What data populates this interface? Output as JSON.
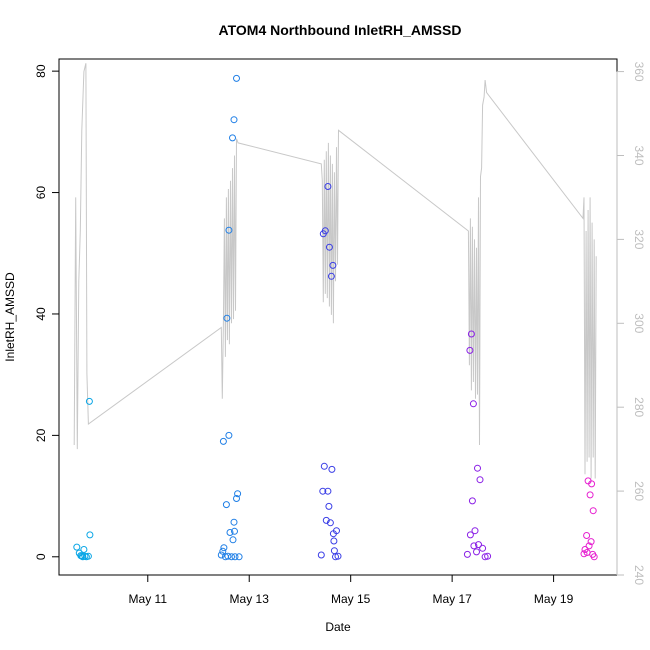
{
  "chart_data": {
    "type": "scatter",
    "title": "ATOM4 Northbound InletRH_AMSSD",
    "xlabel": "Date",
    "ylabel": "InletRH_AMSSD",
    "x_ticks": [
      {
        "label": "May 11",
        "day": 11.0
      },
      {
        "label": "May 13",
        "day": 13.0
      },
      {
        "label": "May 15",
        "day": 15.0
      },
      {
        "label": "May 17",
        "day": 17.0
      },
      {
        "label": "May 19",
        "day": 19.0
      }
    ],
    "xlim_day": [
      9.25,
      20.25
    ],
    "ylim": [
      -3,
      82
    ],
    "y_ticks": [
      0,
      20,
      40,
      60,
      80
    ],
    "secondary_axis": {
      "color": "#bebebe",
      "ylim": [
        240,
        363
      ],
      "ticks": [
        240,
        260,
        280,
        300,
        320,
        340,
        360
      ]
    },
    "points": [
      {
        "day": 9.6,
        "y": 1.6,
        "color": "#0aa6e6"
      },
      {
        "day": 9.65,
        "y": 0.6,
        "color": "#0aa6e6"
      },
      {
        "day": 9.68,
        "y": 0.2,
        "color": "#0aa6e6"
      },
      {
        "day": 9.7,
        "y": 0.1,
        "color": "#0aa6e6"
      },
      {
        "day": 9.72,
        "y": 0.0,
        "color": "#0aa6e6"
      },
      {
        "day": 9.74,
        "y": 1.2,
        "color": "#0aa6e6"
      },
      {
        "day": 9.76,
        "y": 0.1,
        "color": "#0aa6e6"
      },
      {
        "day": 9.79,
        "y": 0.0,
        "color": "#0aa6e6"
      },
      {
        "day": 9.83,
        "y": 0.1,
        "color": "#0aa6e6"
      },
      {
        "day": 9.85,
        "y": 25.6,
        "color": "#0aa6e6"
      },
      {
        "day": 9.86,
        "y": 3.6,
        "color": "#0aa6e6"
      },
      {
        "day": 12.45,
        "y": 0.3,
        "color": "#1f7fe6"
      },
      {
        "day": 12.48,
        "y": 0.9,
        "color": "#1f7fe6"
      },
      {
        "day": 12.49,
        "y": 19.0,
        "color": "#1f7fe6"
      },
      {
        "day": 12.5,
        "y": 1.5,
        "color": "#1f7fe6"
      },
      {
        "day": 12.53,
        "y": 0.0,
        "color": "#1f7fe6"
      },
      {
        "day": 12.55,
        "y": 8.6,
        "color": "#1f7fe6"
      },
      {
        "day": 12.56,
        "y": 39.3,
        "color": "#1f7fe6"
      },
      {
        "day": 12.58,
        "y": 0.1,
        "color": "#1f7fe6"
      },
      {
        "day": 12.6,
        "y": 53.8,
        "color": "#1f7fe6"
      },
      {
        "day": 12.6,
        "y": 20.0,
        "color": "#1f7fe6"
      },
      {
        "day": 12.62,
        "y": 4.0,
        "color": "#1f7fe6"
      },
      {
        "day": 12.65,
        "y": 0.0,
        "color": "#1f7fe6"
      },
      {
        "day": 12.67,
        "y": 69.0,
        "color": "#1f7fe6"
      },
      {
        "day": 12.7,
        "y": 72.0,
        "color": "#1f7fe6"
      },
      {
        "day": 12.7,
        "y": 5.7,
        "color": "#1f7fe6"
      },
      {
        "day": 12.72,
        "y": 0.0,
        "color": "#1f7fe6"
      },
      {
        "day": 12.75,
        "y": 78.8,
        "color": "#1f7fe6"
      },
      {
        "day": 12.75,
        "y": 9.6,
        "color": "#1f7fe6"
      },
      {
        "day": 12.77,
        "y": 10.4,
        "color": "#1f7fe6"
      },
      {
        "day": 12.8,
        "y": 0.0,
        "color": "#1f7fe6"
      },
      {
        "day": 12.68,
        "y": 2.8,
        "color": "#1f7fe6"
      },
      {
        "day": 12.71,
        "y": 4.2,
        "color": "#1f7fe6"
      },
      {
        "day": 14.42,
        "y": 0.3,
        "color": "#3a3ee6"
      },
      {
        "day": 14.45,
        "y": 10.8,
        "color": "#3a3ee6"
      },
      {
        "day": 14.46,
        "y": 53.2,
        "color": "#3a3ee6"
      },
      {
        "day": 14.48,
        "y": 14.9,
        "color": "#3a3ee6"
      },
      {
        "day": 14.5,
        "y": 53.7,
        "color": "#3a3ee6"
      },
      {
        "day": 14.52,
        "y": 6.0,
        "color": "#3a3ee6"
      },
      {
        "day": 14.55,
        "y": 61.0,
        "color": "#3a3ee6"
      },
      {
        "day": 14.55,
        "y": 10.8,
        "color": "#3a3ee6"
      },
      {
        "day": 14.57,
        "y": 8.3,
        "color": "#3a3ee6"
      },
      {
        "day": 14.58,
        "y": 51.0,
        "color": "#3a3ee6"
      },
      {
        "day": 14.6,
        "y": 5.6,
        "color": "#3a3ee6"
      },
      {
        "day": 14.62,
        "y": 46.2,
        "color": "#3a3ee6"
      },
      {
        "day": 14.63,
        "y": 14.4,
        "color": "#3a3ee6"
      },
      {
        "day": 14.65,
        "y": 48.0,
        "color": "#3a3ee6"
      },
      {
        "day": 14.67,
        "y": 2.6,
        "color": "#3a3ee6"
      },
      {
        "day": 14.7,
        "y": 0.0,
        "color": "#3a3ee6"
      },
      {
        "day": 14.72,
        "y": 4.3,
        "color": "#3a3ee6"
      },
      {
        "day": 14.75,
        "y": 0.1,
        "color": "#3a3ee6"
      },
      {
        "day": 14.66,
        "y": 3.8,
        "color": "#3a3ee6"
      },
      {
        "day": 14.68,
        "y": 1.0,
        "color": "#3a3ee6"
      },
      {
        "day": 17.3,
        "y": 0.4,
        "color": "#8a1fe6"
      },
      {
        "day": 17.35,
        "y": 34.0,
        "color": "#8a1fe6"
      },
      {
        "day": 17.38,
        "y": 36.7,
        "color": "#8a1fe6"
      },
      {
        "day": 17.4,
        "y": 9.2,
        "color": "#8a1fe6"
      },
      {
        "day": 17.42,
        "y": 25.2,
        "color": "#8a1fe6"
      },
      {
        "day": 17.45,
        "y": 4.3,
        "color": "#8a1fe6"
      },
      {
        "day": 17.5,
        "y": 14.6,
        "color": "#8a1fe6"
      },
      {
        "day": 17.55,
        "y": 12.7,
        "color": "#8a1fe6"
      },
      {
        "day": 17.6,
        "y": 1.4,
        "color": "#8a1fe6"
      },
      {
        "day": 17.65,
        "y": 0.0,
        "color": "#8a1fe6"
      },
      {
        "day": 17.7,
        "y": 0.1,
        "color": "#8a1fe6"
      },
      {
        "day": 17.36,
        "y": 3.6,
        "color": "#8a1fe6"
      },
      {
        "day": 17.43,
        "y": 1.8,
        "color": "#8a1fe6"
      },
      {
        "day": 17.48,
        "y": 0.8,
        "color": "#8a1fe6"
      },
      {
        "day": 17.52,
        "y": 2.0,
        "color": "#8a1fe6"
      },
      {
        "day": 19.6,
        "y": 0.5,
        "color": "#e61fd0"
      },
      {
        "day": 19.65,
        "y": 3.5,
        "color": "#e61fd0"
      },
      {
        "day": 19.68,
        "y": 12.5,
        "color": "#e61fd0"
      },
      {
        "day": 19.72,
        "y": 10.2,
        "color": "#e61fd0"
      },
      {
        "day": 19.75,
        "y": 12.0,
        "color": "#e61fd0"
      },
      {
        "day": 19.78,
        "y": 7.6,
        "color": "#e61fd0"
      },
      {
        "day": 19.8,
        "y": 0.0,
        "color": "#e61fd0"
      },
      {
        "day": 19.62,
        "y": 1.2,
        "color": "#e61fd0"
      },
      {
        "day": 19.66,
        "y": 0.7,
        "color": "#e61fd0"
      },
      {
        "day": 19.7,
        "y": 1.8,
        "color": "#e61fd0"
      },
      {
        "day": 19.74,
        "y": 2.5,
        "color": "#e61fd0"
      },
      {
        "day": 19.77,
        "y": 0.4,
        "color": "#e61fd0"
      }
    ],
    "line_series": {
      "axis": "secondary",
      "color": "#c8c8c8",
      "points": [
        {
          "day": 9.55,
          "y": 271
        },
        {
          "day": 9.58,
          "y": 330
        },
        {
          "day": 9.61,
          "y": 270
        },
        {
          "day": 9.64,
          "y": 310
        },
        {
          "day": 9.67,
          "y": 322
        },
        {
          "day": 9.7,
          "y": 346
        },
        {
          "day": 9.74,
          "y": 360
        },
        {
          "day": 9.78,
          "y": 362
        },
        {
          "day": 9.8,
          "y": 288
        },
        {
          "day": 9.83,
          "y": 276
        },
        {
          "day": 12.45,
          "y": 299
        },
        {
          "day": 12.47,
          "y": 282
        },
        {
          "day": 12.49,
          "y": 300
        },
        {
          "day": 12.51,
          "y": 325
        },
        {
          "day": 12.53,
          "y": 292
        },
        {
          "day": 12.55,
          "y": 330
        },
        {
          "day": 12.57,
          "y": 296
        },
        {
          "day": 12.59,
          "y": 332
        },
        {
          "day": 12.61,
          "y": 295
        },
        {
          "day": 12.63,
          "y": 334
        },
        {
          "day": 12.65,
          "y": 300
        },
        {
          "day": 12.67,
          "y": 337
        },
        {
          "day": 12.69,
          "y": 301
        },
        {
          "day": 12.71,
          "y": 340
        },
        {
          "day": 12.73,
          "y": 303
        },
        {
          "day": 12.75,
          "y": 344
        },
        {
          "day": 12.78,
          "y": 343
        },
        {
          "day": 14.42,
          "y": 338
        },
        {
          "day": 14.44,
          "y": 334
        },
        {
          "day": 14.46,
          "y": 305
        },
        {
          "day": 14.48,
          "y": 339
        },
        {
          "day": 14.5,
          "y": 307
        },
        {
          "day": 14.52,
          "y": 341
        },
        {
          "day": 14.54,
          "y": 306
        },
        {
          "day": 14.56,
          "y": 343
        },
        {
          "day": 14.58,
          "y": 304
        },
        {
          "day": 14.6,
          "y": 340
        },
        {
          "day": 14.62,
          "y": 302
        },
        {
          "day": 14.64,
          "y": 338
        },
        {
          "day": 14.66,
          "y": 300
        },
        {
          "day": 14.68,
          "y": 336
        },
        {
          "day": 14.7,
          "y": 310
        },
        {
          "day": 14.72,
          "y": 342
        },
        {
          "day": 14.74,
          "y": 314
        },
        {
          "day": 14.76,
          "y": 346
        },
        {
          "day": 17.32,
          "y": 322
        },
        {
          "day": 17.34,
          "y": 290
        },
        {
          "day": 17.36,
          "y": 325
        },
        {
          "day": 17.38,
          "y": 284
        },
        {
          "day": 17.4,
          "y": 323
        },
        {
          "day": 17.42,
          "y": 286
        },
        {
          "day": 17.44,
          "y": 320
        },
        {
          "day": 17.46,
          "y": 282
        },
        {
          "day": 17.48,
          "y": 318
        },
        {
          "day": 17.5,
          "y": 283
        },
        {
          "day": 17.52,
          "y": 330
        },
        {
          "day": 17.54,
          "y": 271
        },
        {
          "day": 17.56,
          "y": 335
        },
        {
          "day": 17.58,
          "y": 337
        },
        {
          "day": 17.6,
          "y": 352
        },
        {
          "day": 17.63,
          "y": 354
        },
        {
          "day": 17.65,
          "y": 358
        },
        {
          "day": 17.68,
          "y": 355
        },
        {
          "day": 19.58,
          "y": 325
        },
        {
          "day": 19.6,
          "y": 330
        },
        {
          "day": 19.62,
          "y": 264
        },
        {
          "day": 19.64,
          "y": 322
        },
        {
          "day": 19.66,
          "y": 267
        },
        {
          "day": 19.68,
          "y": 327
        },
        {
          "day": 19.7,
          "y": 268
        },
        {
          "day": 19.72,
          "y": 330
        },
        {
          "day": 19.74,
          "y": 263
        },
        {
          "day": 19.76,
          "y": 324
        },
        {
          "day": 19.78,
          "y": 268
        },
        {
          "day": 19.8,
          "y": 320
        },
        {
          "day": 19.82,
          "y": 263
        },
        {
          "day": 19.84,
          "y": 316
        }
      ]
    }
  }
}
